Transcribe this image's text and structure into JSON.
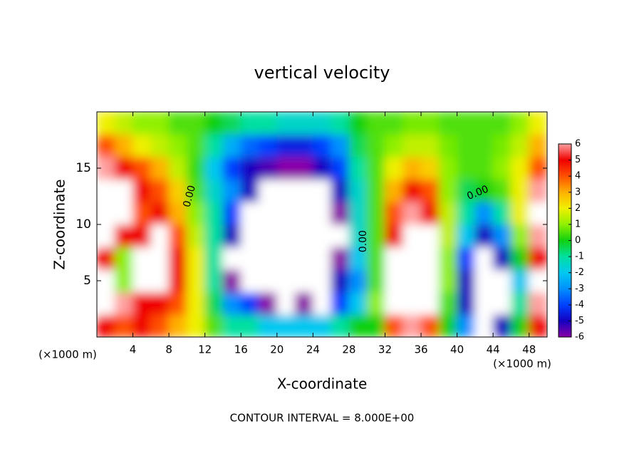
{
  "chart_data": {
    "type": "heatmap",
    "title": "vertical velocity",
    "x_label": "X-coordinate",
    "y_label": "Z-coordinate",
    "x_unit": "(×1000 m)",
    "y_unit": "(×1000 m)",
    "footnote": "CONTOUR INTERVAL = 8.000E+00",
    "contour_labels": [
      "0.00",
      "0.00",
      "0.00"
    ],
    "x": [
      1,
      3,
      5,
      7,
      9,
      11,
      13,
      15,
      17,
      19,
      21,
      23,
      25,
      27,
      29,
      31,
      33,
      35,
      37,
      39,
      41,
      43,
      45,
      47,
      49
    ],
    "y": [
      1,
      3,
      5,
      7,
      9,
      11,
      13,
      15,
      17,
      19
    ],
    "z": [
      [
        5,
        4,
        5,
        4,
        3,
        2,
        0.5,
        -1,
        -1,
        -2,
        -2,
        -2,
        -2,
        -1,
        0,
        0,
        4,
        6,
        4,
        0,
        -3,
        -7,
        -5,
        0,
        5
      ],
      [
        7,
        6,
        5,
        5,
        4,
        2,
        -0.5,
        -3,
        -4,
        -6,
        -7,
        -6,
        -7,
        -4,
        -2,
        1,
        8,
        8,
        7,
        0.5,
        -5,
        -8,
        -8,
        -1,
        6
      ],
      [
        8,
        1,
        8,
        8,
        5,
        2,
        -1,
        -6,
        -8,
        -8,
        -8,
        -8,
        -8,
        -5,
        -3,
        0.5,
        8,
        8,
        8,
        1,
        -5,
        -8,
        -7,
        -2,
        8
      ],
      [
        5,
        1,
        8,
        8,
        5,
        2,
        -1,
        -7,
        -8,
        -8,
        -8,
        -8,
        -8,
        -6,
        -2,
        0.5,
        7,
        8,
        8,
        1,
        -4,
        -7,
        -5,
        0,
        5
      ],
      [
        8,
        5,
        5,
        8,
        4,
        1.5,
        -1,
        -5,
        -8,
        -8,
        -8,
        -8,
        -8,
        -7,
        -1.5,
        0.5,
        5,
        8,
        7,
        1.5,
        -2,
        -5,
        -3,
        1,
        6
      ],
      [
        8,
        7,
        4,
        5,
        3,
        1,
        -1,
        -4,
        -7,
        -8,
        -8,
        -8,
        -8,
        -6,
        -1.5,
        0.5,
        4,
        6,
        5,
        1.5,
        -1,
        -3,
        -1,
        2,
        7
      ],
      [
        8,
        8,
        5,
        4,
        2.5,
        0.5,
        -1.5,
        -3,
        -5,
        -8,
        -8,
        -8,
        -7,
        -5,
        -1.5,
        0.5,
        3,
        5,
        4,
        1,
        -0.5,
        0,
        0.5,
        2,
        6
      ],
      [
        6,
        5,
        4,
        3,
        1.5,
        0.3,
        -2,
        -4,
        -5,
        -5.5,
        -6,
        -6,
        -5,
        -4,
        -1,
        0.5,
        2,
        3,
        2.5,
        1,
        0.5,
        0.5,
        1,
        2,
        4
      ],
      [
        4,
        3,
        2,
        1.5,
        1,
        0.5,
        -1,
        -2.5,
        -3.5,
        -4,
        -4.5,
        -4.5,
        -4,
        -3,
        -0.5,
        0.5,
        1,
        1.5,
        1.5,
        0.8,
        0.5,
        0.5,
        0.8,
        1.5,
        3
      ],
      [
        2,
        1.5,
        1,
        1,
        0.5,
        0.5,
        0,
        -0.5,
        -1,
        -1,
        -1.5,
        -1.5,
        -1.5,
        -1,
        0,
        0.5,
        0.5,
        0.8,
        0.8,
        0.5,
        0.5,
        0.5,
        0.5,
        1,
        2
      ]
    ],
    "xlim": [
      0,
      50
    ],
    "ylim": [
      0,
      20
    ],
    "xticks": [
      4,
      8,
      12,
      16,
      20,
      24,
      28,
      32,
      36,
      40,
      44,
      48
    ],
    "yticks": [
      5,
      10,
      15
    ],
    "colorbar_lim": [
      -6,
      6
    ],
    "colorbar_ticks": [
      6,
      5,
      4,
      3,
      2,
      1,
      0,
      -1,
      -2,
      -3,
      -4,
      -5,
      -6
    ],
    "colorscale": [
      "#8a00a8",
      "#1400c0",
      "#0040ff",
      "#0090ff",
      "#00c8f0",
      "#00e0a0",
      "#10d010",
      "#90f000",
      "#f0f000",
      "#ffb000",
      "#ff5000",
      "#f00000",
      "#ffa0a0"
    ],
    "out_of_range_color": "#ffffff"
  }
}
